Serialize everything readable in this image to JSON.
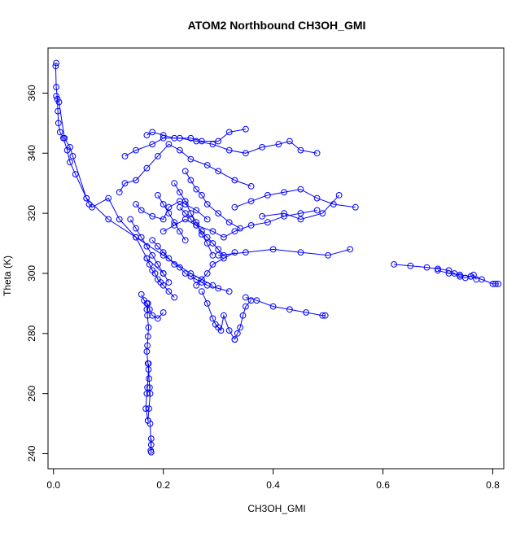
{
  "chart_data": {
    "type": "scatter",
    "title": "ATOM2 Northbound CH3OH_GMI",
    "xlabel": "CH3OH_GMI",
    "ylabel": "Theta (K)",
    "xlim": [
      -0.01,
      0.82
    ],
    "ylim": [
      235,
      375
    ],
    "x_ticks": [
      0.0,
      0.2,
      0.4,
      0.6,
      0.8
    ],
    "x_tick_labels": [
      "0.0",
      "0.2",
      "0.4",
      "0.6",
      "0.8"
    ],
    "y_ticks": [
      240,
      260,
      280,
      300,
      320,
      340,
      360
    ],
    "y_tick_labels": [
      "240",
      "260",
      "280",
      "300",
      "320",
      "340",
      "360"
    ],
    "grid": false,
    "marker": "open-circle",
    "color": "#0000ff",
    "series": [
      {
        "x": [
          0.17,
          0.172,
          0.171,
          0.173,
          0.172,
          0.171,
          0.17,
          0.172,
          0.173,
          0.171,
          0.17,
          0.168,
          0.172
        ],
        "y": [
          288,
          290,
          286,
          282,
          279,
          276,
          274,
          270,
          268,
          262,
          260,
          255,
          251
        ]
      },
      {
        "x": [
          0.172,
          0.174,
          0.176,
          0.175,
          0.174,
          0.173
        ],
        "y": [
          251,
          255,
          260,
          262,
          265,
          270
        ]
      },
      {
        "x": [
          0.178,
          0.178,
          0.177,
          0.178,
          0.176
        ],
        "y": [
          245,
          243,
          241,
          240.5,
          250
        ]
      },
      {
        "x": [
          0.005,
          0.004,
          0.005,
          0.007,
          0.008,
          0.009,
          0.012,
          0.018,
          0.025,
          0.03,
          0.04,
          0.06,
          0.1,
          0.15,
          0.2,
          0.25,
          0.29
        ],
        "y": [
          370,
          369,
          362,
          358,
          354,
          350,
          347,
          345,
          341,
          337,
          333,
          325,
          318,
          312,
          306,
          300,
          296
        ]
      },
      {
        "x": [
          0.005,
          0.01,
          0.02,
          0.03,
          0.035,
          0.06,
          0.065,
          0.07,
          0.1,
          0.12,
          0.15,
          0.17,
          0.2
        ],
        "y": [
          359,
          357,
          345,
          342,
          339,
          325,
          323,
          322,
          325,
          318,
          312,
          305,
          300
        ]
      },
      {
        "x": [
          0.12,
          0.13,
          0.15,
          0.17,
          0.19,
          0.21,
          0.23,
          0.25,
          0.28,
          0.3,
          0.33,
          0.36
        ],
        "y": [
          327,
          330,
          331,
          335,
          339,
          343,
          341,
          338,
          336,
          334,
          331,
          329
        ]
      },
      {
        "x": [
          0.13,
          0.15,
          0.18,
          0.2,
          0.23,
          0.26,
          0.29,
          0.32,
          0.35,
          0.38,
          0.41,
          0.43,
          0.45,
          0.48
        ],
        "y": [
          339,
          341,
          343,
          345,
          345,
          344,
          343,
          341,
          340,
          342,
          343,
          344,
          341,
          340
        ]
      },
      {
        "x": [
          0.17,
          0.18,
          0.2,
          0.22,
          0.25,
          0.27,
          0.3,
          0.32,
          0.35
        ],
        "y": [
          346,
          347,
          346,
          345,
          345,
          344,
          344,
          347,
          348
        ]
      },
      {
        "x": [
          0.15,
          0.16,
          0.18,
          0.2,
          0.21,
          0.23,
          0.24,
          0.26,
          0.28
        ],
        "y": [
          323,
          321,
          319,
          318,
          322,
          324,
          323,
          321,
          318
        ]
      },
      {
        "x": [
          0.18,
          0.19,
          0.2,
          0.21,
          0.22,
          0.23,
          0.24,
          0.25,
          0.26,
          0.27,
          0.28,
          0.3,
          0.32
        ],
        "y": [
          311,
          309,
          307,
          305,
          303,
          302,
          300,
          299,
          298,
          297,
          296,
          295,
          294
        ]
      },
      {
        "x": [
          0.17,
          0.175,
          0.18,
          0.185,
          0.19,
          0.195,
          0.2,
          0.21,
          0.22
        ],
        "y": [
          305,
          303,
          301,
          300,
          298,
          297,
          296,
          294,
          292
        ]
      },
      {
        "x": [
          0.2,
          0.22,
          0.24,
          0.26,
          0.29,
          0.31,
          0.33,
          0.36,
          0.39,
          0.42,
          0.45,
          0.48
        ],
        "y": [
          314,
          316,
          318,
          316,
          314,
          312,
          314,
          316,
          317,
          319,
          320,
          321
        ]
      },
      {
        "x": [
          0.33,
          0.36,
          0.39,
          0.42,
          0.45,
          0.48,
          0.51,
          0.55
        ],
        "y": [
          322,
          324,
          326,
          327,
          328,
          325,
          323,
          322
        ]
      },
      {
        "x": [
          0.38,
          0.42,
          0.45,
          0.49,
          0.52
        ],
        "y": [
          319,
          320,
          318,
          320,
          326
        ]
      },
      {
        "x": [
          0.3,
          0.35,
          0.4,
          0.45,
          0.5,
          0.54
        ],
        "y": [
          306,
          307,
          308,
          307,
          306,
          308
        ]
      },
      {
        "x": [
          0.62,
          0.65,
          0.68,
          0.7,
          0.72,
          0.73,
          0.74,
          0.75,
          0.76,
          0.765,
          0.77
        ],
        "y": [
          303,
          302.5,
          302,
          301.5,
          301,
          300,
          299,
          298.5,
          299,
          299.5,
          298
        ]
      },
      {
        "x": [
          0.7,
          0.72,
          0.74,
          0.76,
          0.78,
          0.8,
          0.805,
          0.81
        ],
        "y": [
          301,
          300,
          299.5,
          299,
          298,
          296.5,
          296.5,
          296.5
        ]
      },
      {
        "x": [
          0.27,
          0.28,
          0.29,
          0.295,
          0.3,
          0.305,
          0.31,
          0.32,
          0.33
        ],
        "y": [
          294,
          290,
          285,
          283,
          282,
          281,
          286,
          281,
          278
        ]
      },
      {
        "x": [
          0.33,
          0.335,
          0.34,
          0.345,
          0.35,
          0.36
        ],
        "y": [
          278,
          280,
          282,
          286,
          289,
          291
        ]
      },
      {
        "x": [
          0.35,
          0.37,
          0.4,
          0.43,
          0.46,
          0.49,
          0.495
        ],
        "y": [
          292,
          291,
          289,
          288,
          287,
          286,
          286
        ]
      },
      {
        "x": [
          0.22,
          0.23,
          0.24,
          0.25,
          0.26,
          0.27,
          0.28,
          0.29
        ],
        "y": [
          330,
          327,
          324,
          320,
          317,
          313,
          310,
          306
        ]
      },
      {
        "x": [
          0.14,
          0.15,
          0.16,
          0.17,
          0.18,
          0.19,
          0.2,
          0.21
        ],
        "y": [
          318,
          315,
          312,
          309,
          306,
          303,
          300,
          297
        ]
      },
      {
        "x": [
          0.23,
          0.24,
          0.25,
          0.26,
          0.27,
          0.28,
          0.29,
          0.3,
          0.31
        ],
        "y": [
          322,
          320,
          318,
          316,
          314,
          312,
          310,
          308,
          306
        ]
      },
      {
        "x": [
          0.16,
          0.165,
          0.17,
          0.175,
          0.18,
          0.19,
          0.2
        ],
        "y": [
          293,
          291,
          290,
          288,
          286,
          285,
          287
        ]
      },
      {
        "x": [
          0.24,
          0.25,
          0.26,
          0.27,
          0.28,
          0.3,
          0.32,
          0.34
        ],
        "y": [
          334,
          331,
          328,
          326,
          323,
          320,
          317,
          315
        ]
      },
      {
        "x": [
          0.26,
          0.27,
          0.28,
          0.29,
          0.31,
          0.33
        ],
        "y": [
          296,
          298,
          300,
          303,
          305,
          307
        ]
      },
      {
        "x": [
          0.19,
          0.2,
          0.21,
          0.22,
          0.23,
          0.24
        ],
        "y": [
          326,
          323,
          320,
          317,
          314,
          311
        ]
      }
    ]
  }
}
